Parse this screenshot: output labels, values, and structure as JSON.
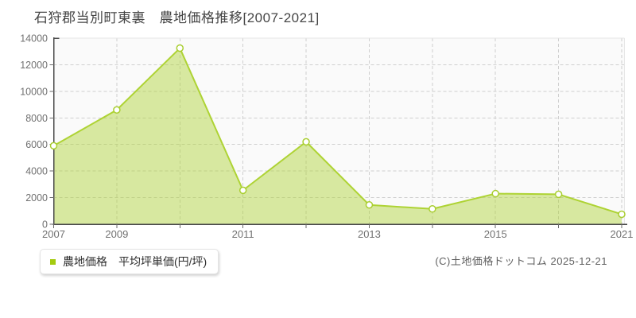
{
  "legend": {
    "label": "農地価格　平均坪単価(円/坪)",
    "marker_color": "#a4cb10"
  },
  "footer": {
    "copyright": "(C)土地価格ドットコム 2025-12-21"
  },
  "chart_data": {
    "type": "area",
    "title": "石狩郡当別町東裏　農地価格推移[2007-2021]",
    "series_name": "農地価格 平均坪単価(円/坪)",
    "categories": [
      "2007",
      "2009",
      "2010",
      "2011",
      "2012",
      "2013",
      "2014",
      "2015",
      "2016",
      "2021"
    ],
    "values": [
      5900,
      8600,
      13250,
      2550,
      6200,
      1450,
      1150,
      2300,
      2250,
      750
    ],
    "x_tick_labels": [
      "2007",
      "2009",
      "2011",
      "2013",
      "2015",
      "2021"
    ],
    "x_tick_indices": [
      0,
      1,
      3,
      5,
      7,
      9
    ],
    "xlabel": "",
    "ylabel": "",
    "ylim": [
      0,
      14000
    ],
    "y_tick_step": 2000,
    "grid": true,
    "legend_position": "bottom-left",
    "colors": {
      "line": "#aed334",
      "fill": "#aed334",
      "fill_opacity": 0.45,
      "marker_fill": "#ffffff",
      "marker_stroke": "#a9ce30",
      "grid": "#cfcfcf",
      "plot_bg": "#fafafa",
      "plot_border": "#e6e6e6",
      "axis": "#4a4a4a",
      "tick": "#6a6a6a",
      "tick_label": "#707070",
      "title_color": "#454545"
    }
  }
}
